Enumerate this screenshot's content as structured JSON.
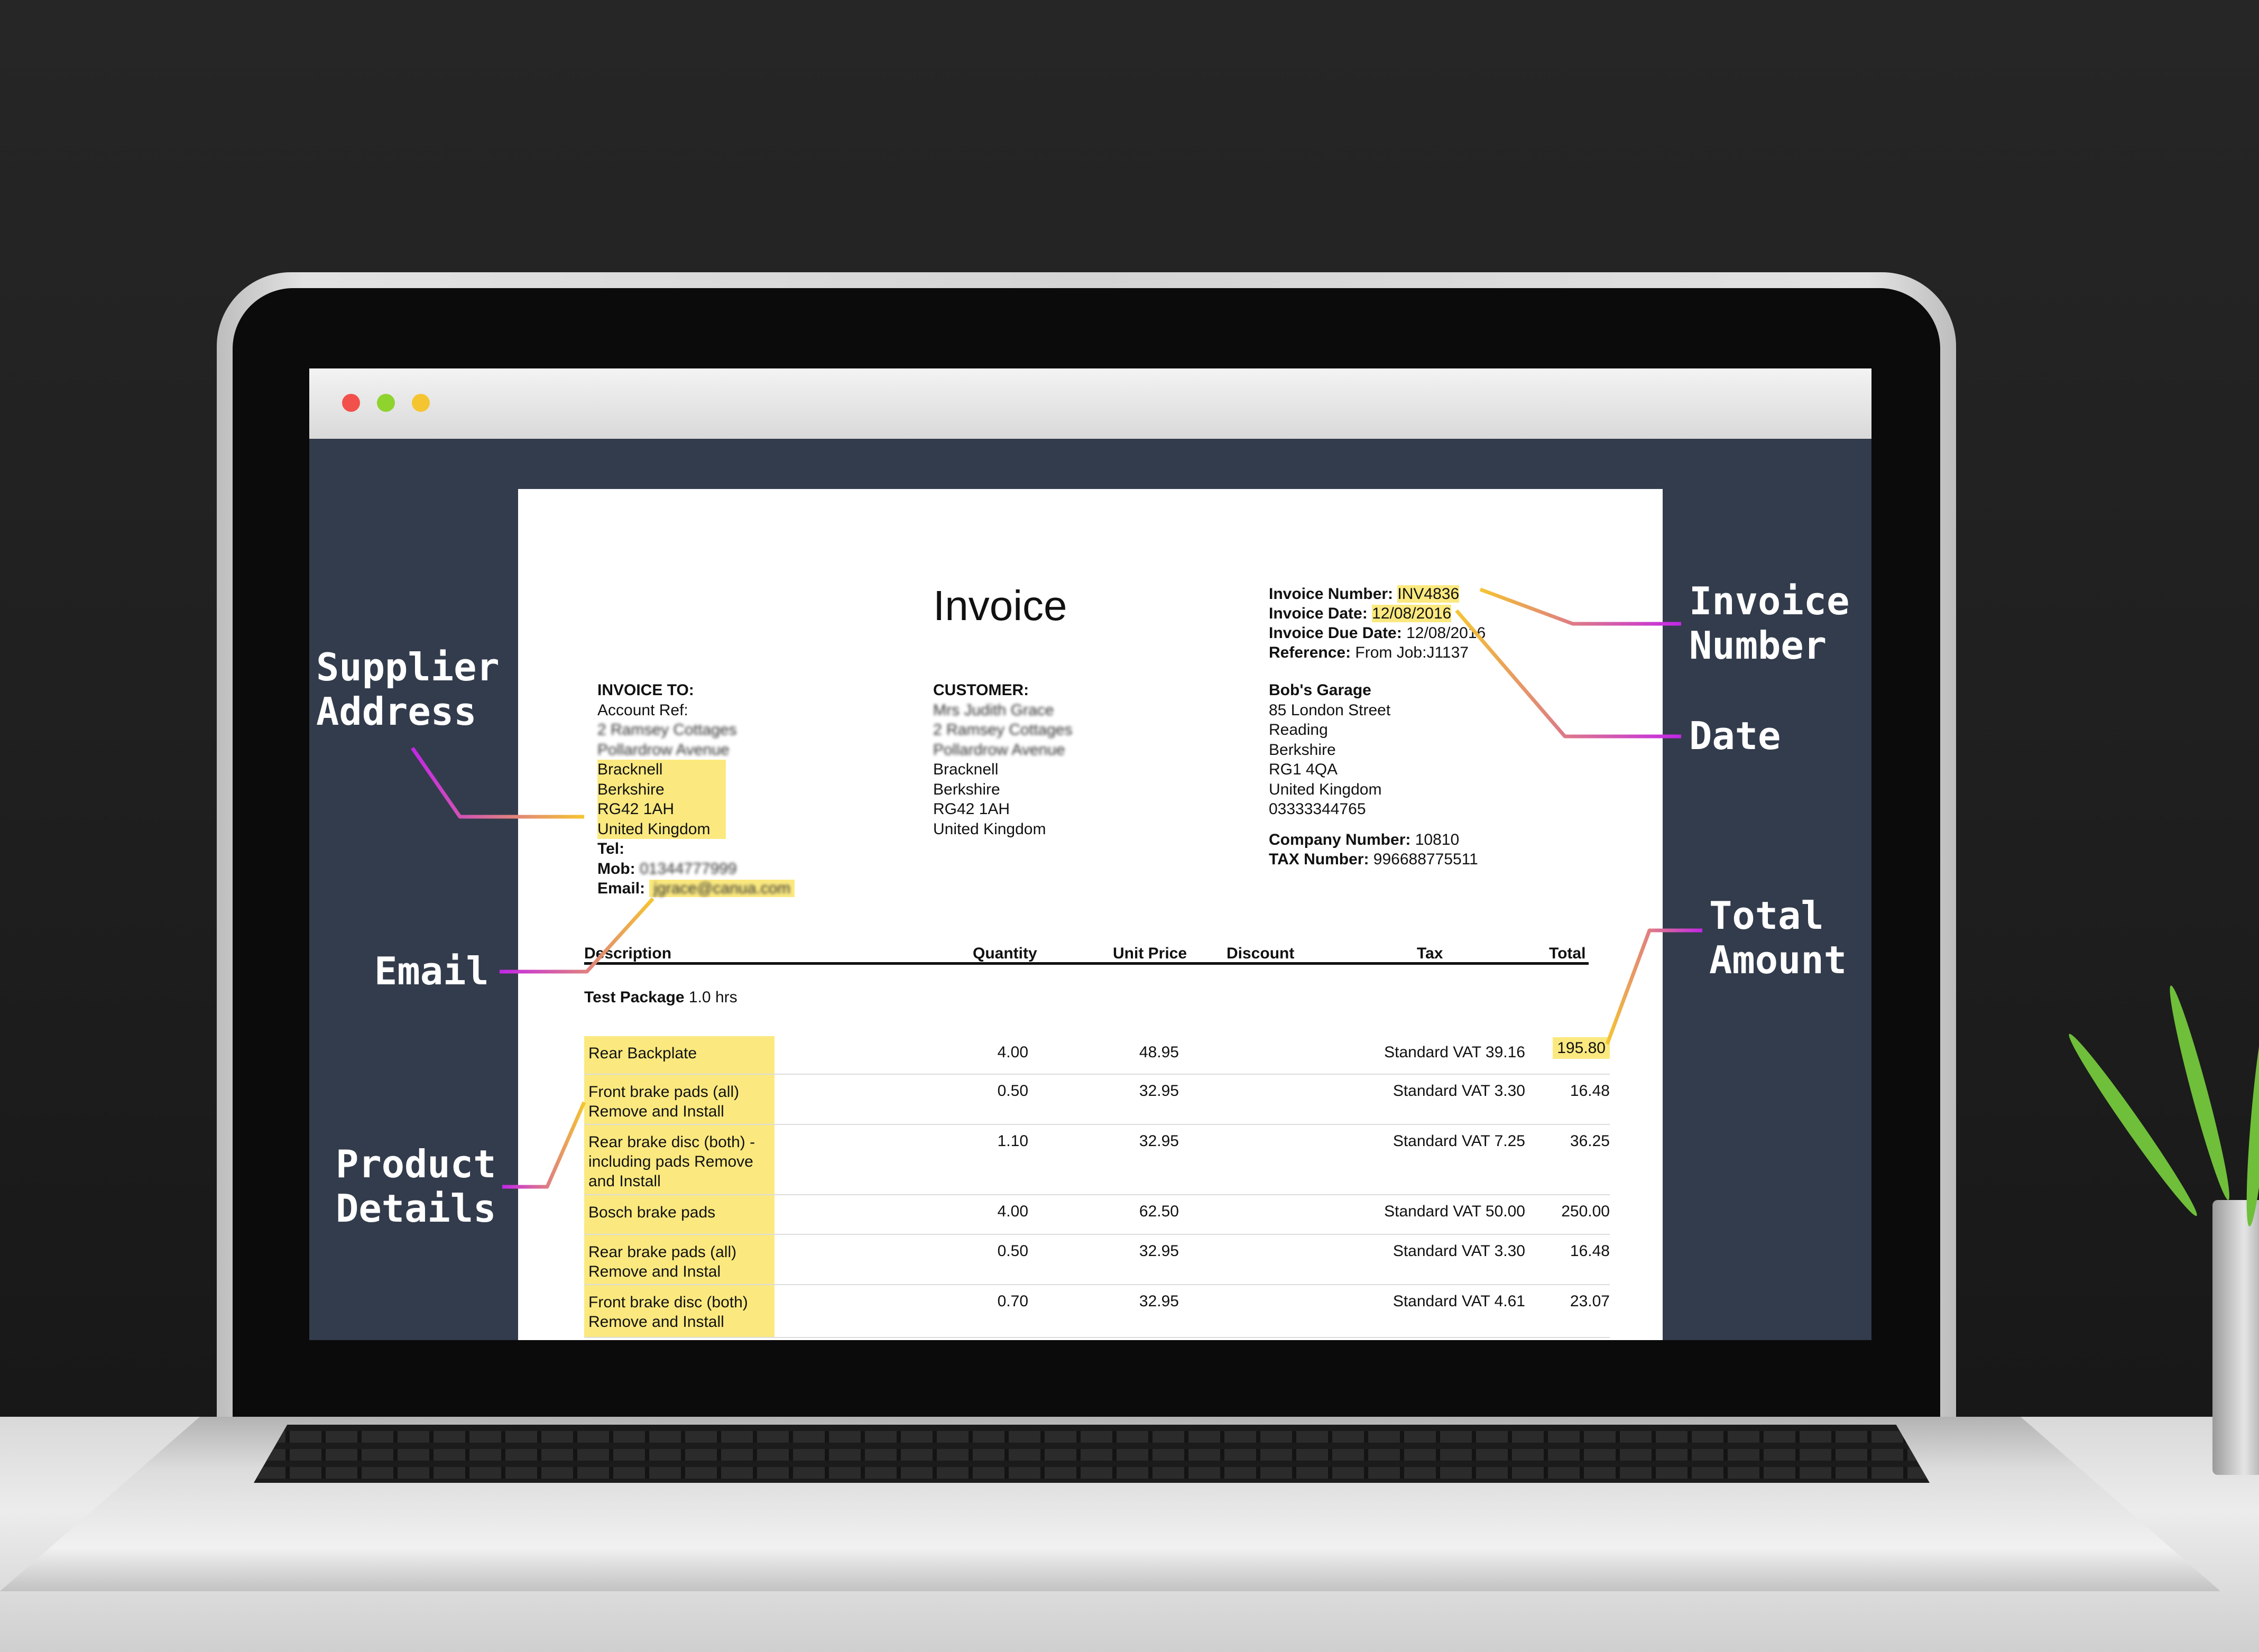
{
  "window": {
    "title_dots": [
      "close",
      "minimize",
      "maximize"
    ]
  },
  "invoice": {
    "title": "Invoice",
    "meta": [
      {
        "label": "Invoice Number:",
        "value": "INV4836",
        "hl": true
      },
      {
        "label": "Invoice Date:",
        "value": "12/08/2016",
        "hl": true
      },
      {
        "label": "Invoice Due Date:",
        "value": "12/08/2016",
        "hl": false
      },
      {
        "label": "Reference:",
        "value": "From Job:J1137",
        "hl": false
      }
    ],
    "invoice_to": {
      "heading": "INVOICE TO:",
      "account_ref": "Account Ref:",
      "blurred_lines": [
        "2 Ramsey Cottages",
        "Pollardrow Avenue"
      ],
      "lines": [
        "Bracknell",
        "Berkshire",
        "RG42 1AH",
        "United Kingdom"
      ],
      "tel_label": "Tel:",
      "mob_label": "Mob:",
      "mob_value": "01344777999",
      "email_label": "Email:",
      "email_value": "jgrace@canua.com"
    },
    "customer": {
      "heading": "CUSTOMER:",
      "blurred_lines": [
        "Mrs Judith Grace",
        "2 Ramsey Cottages",
        "Pollardrow Avenue"
      ],
      "lines": [
        "Bracknell",
        "Berkshire",
        "RG42 1AH",
        "United Kingdom"
      ]
    },
    "supplier": {
      "name": "Bob's Garage",
      "lines": [
        "85 London Street",
        "Reading",
        "Berkshire",
        "RG1 4QA",
        "United Kingdom",
        "03333344765"
      ],
      "company_number_label": "Company Number:",
      "company_number": "10810",
      "tax_number_label": "TAX Number:",
      "tax_number": "996688775511"
    },
    "table": {
      "headers": {
        "description": "Description",
        "quantity": "Quantity",
        "unit_price": "Unit Price",
        "discount": "Discount",
        "tax": "Tax",
        "total": "Total"
      },
      "package_name": "Test Package",
      "package_hours": "1.0 hrs",
      "rows": [
        {
          "description": "Rear Backplate",
          "quantity": "4.00",
          "unit_price": "48.95",
          "tax": "Standard VAT 39.16",
          "total": "195.80"
        },
        {
          "description": "Front brake pads (all) Remove and Install",
          "quantity": "0.50",
          "unit_price": "32.95",
          "tax": "Standard VAT 3.30",
          "total": "16.48"
        },
        {
          "description": "Rear brake disc (both) - including pads Remove and Install",
          "quantity": "1.10",
          "unit_price": "32.95",
          "tax": "Standard VAT 7.25",
          "total": "36.25"
        },
        {
          "description": "Bosch brake pads",
          "quantity": "4.00",
          "unit_price": "62.50",
          "tax": "Standard VAT 50.00",
          "total": "250.00"
        },
        {
          "description": "Rear brake pads (all) Remove and Instal",
          "quantity": "0.50",
          "unit_price": "32.95",
          "tax": "Standard VAT 3.30",
          "total": "16.48"
        },
        {
          "description": "Front brake disc (both) Remove and Install",
          "quantity": "0.70",
          "unit_price": "32.95",
          "tax": "Standard VAT 4.61",
          "total": "23.07"
        }
      ]
    }
  },
  "callouts": {
    "supplier_address": "Supplier\nAddress",
    "email": "Email",
    "product_details": "Product\nDetails",
    "invoice_number": "Invoice\nNumber",
    "date": "Date",
    "total_amount": "Total\nAmount"
  },
  "colors": {
    "highlight": "#fbe97f",
    "connector_start": "#f5c531",
    "connector_end": "#c326e8",
    "panel": "#333c4c"
  }
}
